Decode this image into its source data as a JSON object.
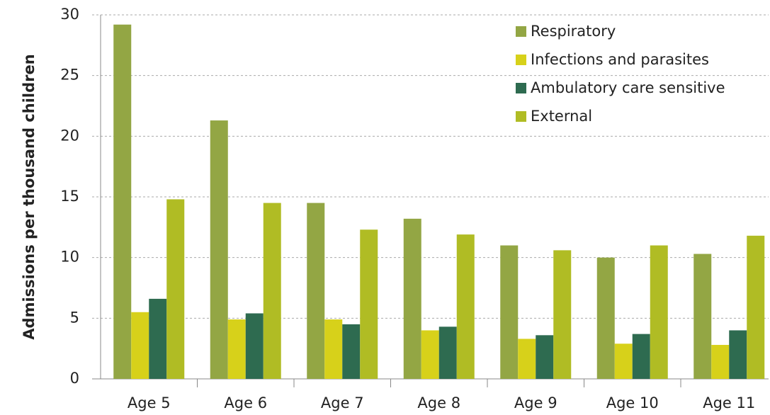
{
  "chart_data": {
    "type": "bar",
    "y_label": "Admissions per thousand children",
    "categories": [
      "Age 5",
      "Age 6",
      "Age 7",
      "Age 8",
      "Age 9",
      "Age 10",
      "Age 11"
    ],
    "series": [
      {
        "name": "Respiratory",
        "color": "#93a644",
        "values": [
          29.2,
          21.3,
          14.5,
          13.2,
          11.0,
          10.0,
          10.3
        ]
      },
      {
        "name": "Infections and parasites",
        "color": "#d7d11a",
        "values": [
          5.5,
          4.9,
          4.9,
          4.0,
          3.3,
          2.9,
          2.8
        ]
      },
      {
        "name": "Ambulatory care sensitive",
        "color": "#2e6b50",
        "values": [
          6.6,
          5.4,
          4.5,
          4.3,
          3.6,
          3.7,
          4.0
        ]
      },
      {
        "name": "External",
        "color": "#b0bc24",
        "values": [
          14.8,
          14.5,
          12.3,
          11.9,
          10.6,
          11.0,
          11.8
        ]
      }
    ],
    "ylim": [
      0,
      30
    ],
    "yticks": [
      0,
      5,
      10,
      15,
      20,
      25,
      30
    ],
    "grid": true,
    "legend": "top-right"
  }
}
